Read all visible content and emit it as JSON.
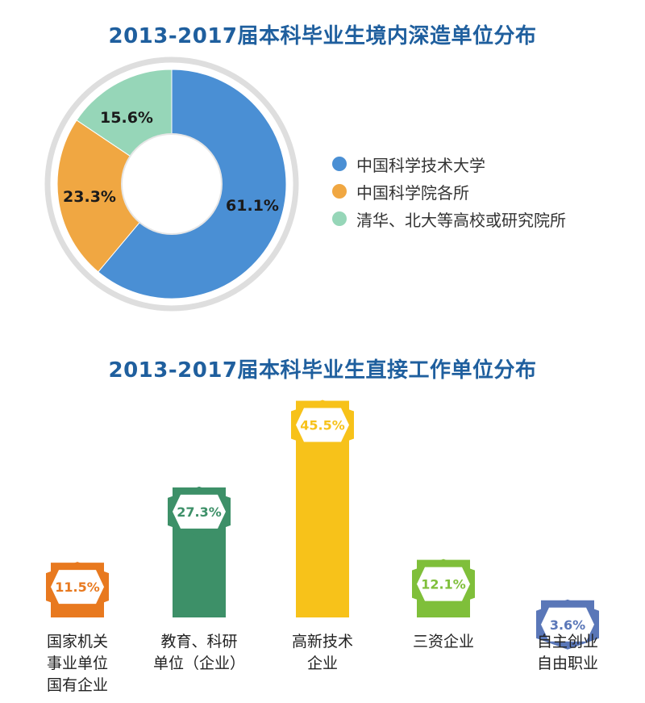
{
  "chart_data": [
    {
      "type": "pie",
      "title": "2013-2017届本科毕业生境内深造单位分布",
      "slices": [
        {
          "label": "中国科学技术大学",
          "value": 61.1,
          "value_label": "61.1%",
          "color": "#4a8fd4"
        },
        {
          "label": "中国科学院各所",
          "value": 23.3,
          "value_label": "23.3%",
          "color": "#f0a742"
        },
        {
          "label": "清华、北大等高校或研究院所",
          "value": 15.6,
          "value_label": "15.6%",
          "color": "#96d6b8"
        }
      ],
      "legend_position": "right"
    },
    {
      "type": "bar",
      "title": "2013-2017届本科毕业生直接工作单位分布",
      "categories": [
        "国家机关\n事业单位\n国有企业",
        "教育、科研\n单位（企业）",
        "高新技术\n企业",
        "三资企业",
        "自主创业\n自由职业"
      ],
      "values": [
        11.5,
        27.3,
        45.5,
        12.1,
        3.6
      ],
      "value_labels": [
        "11.5%",
        "27.3%",
        "45.5%",
        "12.1%",
        "3.6%"
      ],
      "colors": [
        "#e8791f",
        "#3d9068",
        "#f7c21a",
        "#7fbf3a",
        "#5a77b8"
      ]
    }
  ]
}
